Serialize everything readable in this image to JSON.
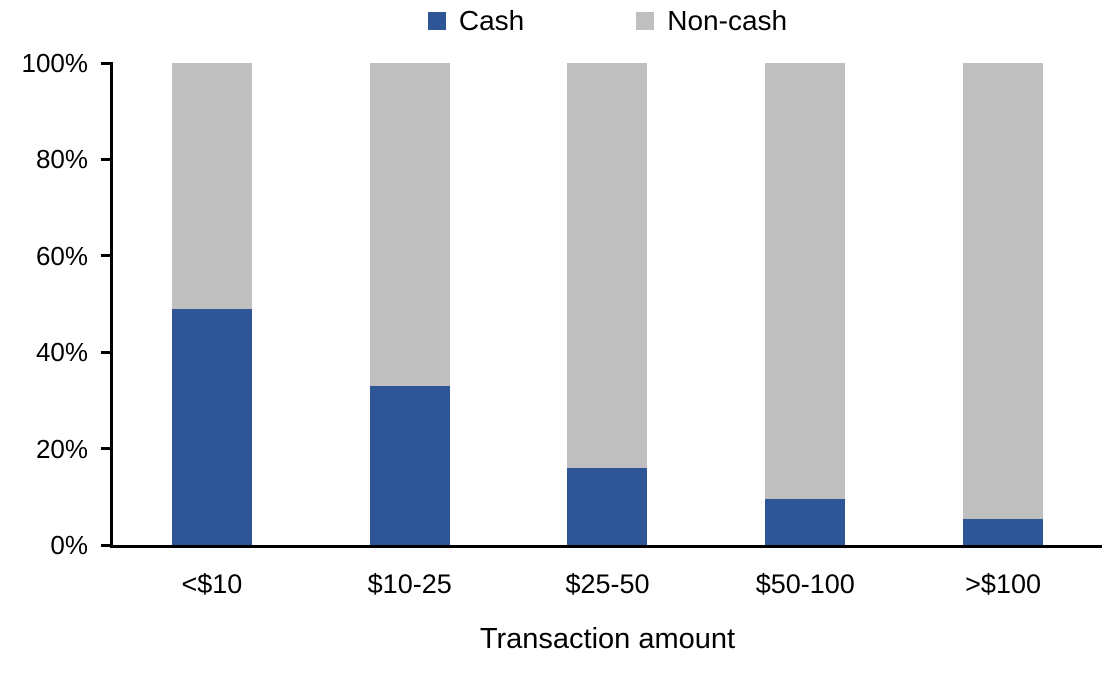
{
  "chart_data": {
    "type": "bar",
    "stacked": true,
    "percent_stacked": true,
    "title": "",
    "xlabel": "Transaction amount",
    "ylabel": "",
    "categories": [
      "<$10",
      "$10-25",
      "$25-50",
      "$50-100",
      ">$100"
    ],
    "series": [
      {
        "name": "Cash",
        "color": "#2E5596",
        "values": [
          49,
          33,
          16,
          9.5,
          5.5
        ]
      },
      {
        "name": "Non-cash",
        "color": "#BFBFBF",
        "values": [
          51,
          67,
          84,
          90.5,
          94.5
        ]
      }
    ],
    "ylim": [
      0,
      100
    ],
    "y_ticks": [
      "0%",
      "20%",
      "40%",
      "60%",
      "80%",
      "100%"
    ],
    "grid": false,
    "legend_position": "top-center",
    "axis_color": "#000000"
  }
}
